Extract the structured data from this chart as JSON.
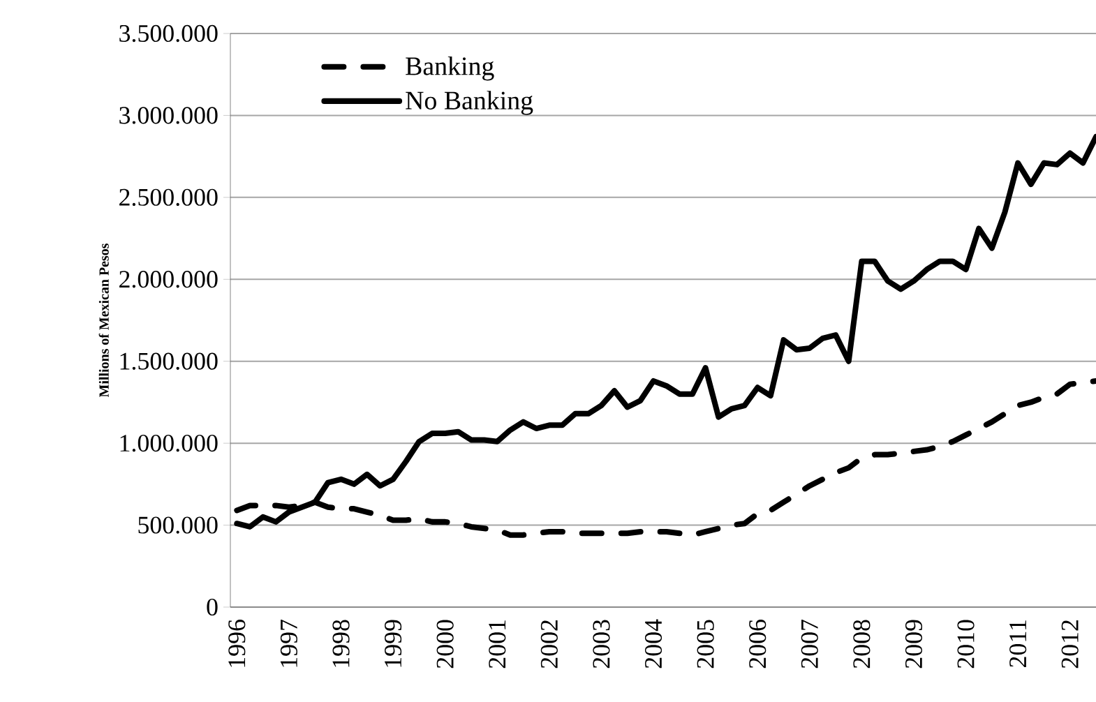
{
  "chart_data": {
    "type": "line",
    "ylabel": "Millions of Mexican Pesos",
    "categories": [
      "1996",
      null,
      null,
      null,
      "1997",
      null,
      null,
      null,
      "1998",
      null,
      null,
      null,
      "1999",
      null,
      null,
      null,
      "2000",
      null,
      null,
      null,
      "2001",
      null,
      null,
      null,
      "2002",
      null,
      null,
      null,
      "2003",
      null,
      null,
      null,
      "2004",
      null,
      null,
      null,
      "2005",
      null,
      null,
      null,
      "2006",
      null,
      null,
      null,
      "2007",
      null,
      null,
      null,
      "2008",
      null,
      null,
      null,
      "2009",
      null,
      null,
      null,
      "2010",
      null,
      null,
      null,
      "2011",
      null,
      null,
      null,
      "2012",
      null,
      null
    ],
    "series": [
      {
        "name": "Banking",
        "color": "#000000",
        "line_style": "dashed",
        "values": [
          590000,
          620000,
          620000,
          620000,
          610000,
          620000,
          640000,
          610000,
          600000,
          600000,
          580000,
          560000,
          530000,
          530000,
          540000,
          520000,
          520000,
          510000,
          490000,
          480000,
          470000,
          440000,
          440000,
          450000,
          460000,
          460000,
          450000,
          450000,
          450000,
          450000,
          450000,
          460000,
          460000,
          460000,
          450000,
          440000,
          460000,
          480000,
          500000,
          510000,
          570000,
          590000,
          640000,
          690000,
          740000,
          780000,
          820000,
          850000,
          910000,
          930000,
          930000,
          940000,
          950000,
          960000,
          980000,
          1010000,
          1050000,
          1090000,
          1130000,
          1180000,
          1230000,
          1250000,
          1280000,
          1300000,
          1360000,
          1370000,
          1380000
        ]
      },
      {
        "name": "No Banking",
        "color": "#000000",
        "line_style": "solid",
        "values": [
          510000,
          490000,
          550000,
          520000,
          580000,
          610000,
          640000,
          760000,
          780000,
          750000,
          810000,
          740000,
          780000,
          890000,
          1010000,
          1060000,
          1060000,
          1070000,
          1020000,
          1020000,
          1010000,
          1080000,
          1130000,
          1090000,
          1110000,
          1110000,
          1180000,
          1180000,
          1230000,
          1320000,
          1220000,
          1260000,
          1380000,
          1350000,
          1300000,
          1300000,
          1460000,
          1160000,
          1210000,
          1230000,
          1340000,
          1290000,
          1630000,
          1570000,
          1580000,
          1640000,
          1660000,
          1500000,
          2110000,
          2110000,
          1990000,
          1940000,
          1990000,
          2060000,
          2110000,
          2110000,
          2060000,
          2310000,
          2190000,
          2410000,
          2710000,
          2580000,
          2710000,
          2700000,
          2770000,
          2710000,
          2870000
        ]
      }
    ],
    "ylim": [
      0,
      3500000
    ],
    "yticks": [
      {
        "value": 0,
        "label": "0"
      },
      {
        "value": 500000,
        "label": "500.000"
      },
      {
        "value": 1000000,
        "label": "1.000.000"
      },
      {
        "value": 1500000,
        "label": "1.500.000"
      },
      {
        "value": 2000000,
        "label": "2.000.000"
      },
      {
        "value": 2500000,
        "label": "2.500.000"
      },
      {
        "value": 3000000,
        "label": "3.000.000"
      },
      {
        "value": 3500000,
        "label": "3.500.000"
      }
    ],
    "grid": "y",
    "legend": "top left",
    "marker": "none"
  }
}
